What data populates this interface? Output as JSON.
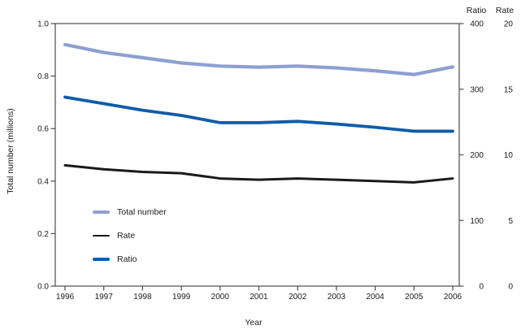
{
  "figure": {
    "left_axis_title": "Total number (millions)",
    "x_axis_title": "Year",
    "right_axis_headers": {
      "ratio": "Ratio",
      "rate": "Rate"
    }
  },
  "legend": {
    "items": [
      {
        "label": "Total number",
        "color": "#8ca0d2"
      },
      {
        "label": "Rate",
        "color": "#1a1a1a"
      },
      {
        "label": "Ratio",
        "color": "#0f5ca8"
      }
    ]
  },
  "chart_data": {
    "type": "line",
    "title": "",
    "xlabel": "Year",
    "ylabel_left": "Total number (millions)",
    "axis_color": "#4d4d4d",
    "grid": false,
    "legend_position": "inside-lower-left",
    "x": [
      1996,
      1997,
      1998,
      1999,
      2000,
      2001,
      2002,
      2003,
      2004,
      2005,
      2006
    ],
    "axes": {
      "left": {
        "range": [
          0,
          1.0
        ],
        "ticks": [
          "1.0",
          "0.8",
          "0.6",
          "0.4",
          "0.2",
          "0.0"
        ]
      },
      "ratio": {
        "range": [
          0,
          400
        ],
        "ticks": [
          "400",
          "300",
          "200",
          "100",
          "0"
        ]
      },
      "rate": {
        "range": [
          0,
          20
        ],
        "ticks": [
          "20",
          "15",
          "10",
          "5",
          "0"
        ]
      },
      "x": {
        "ticks": [
          "1996",
          "1997",
          "1998",
          "1999",
          "2000",
          "2001",
          "2002",
          "2003",
          "2004",
          "2005",
          "2006"
        ]
      }
    },
    "series": [
      {
        "name": "Total number",
        "axis": "left",
        "units": "millions",
        "color": "#8ca0d2",
        "values": [
          0.92,
          0.89,
          0.87,
          0.85,
          0.838,
          0.834,
          0.838,
          0.831,
          0.82,
          0.806,
          0.835
        ]
      },
      {
        "name": "Rate",
        "axis": "rate",
        "color": "#1a1a1a",
        "values": [
          9.2,
          8.9,
          8.7,
          8.6,
          8.2,
          8.1,
          8.2,
          8.1,
          8.0,
          7.9,
          8.2
        ]
      },
      {
        "name": "Ratio",
        "axis": "ratio",
        "color": "#0f5ca8",
        "values": [
          288,
          278,
          268,
          260,
          249,
          249,
          251,
          247,
          242,
          236,
          236
        ]
      }
    ]
  }
}
